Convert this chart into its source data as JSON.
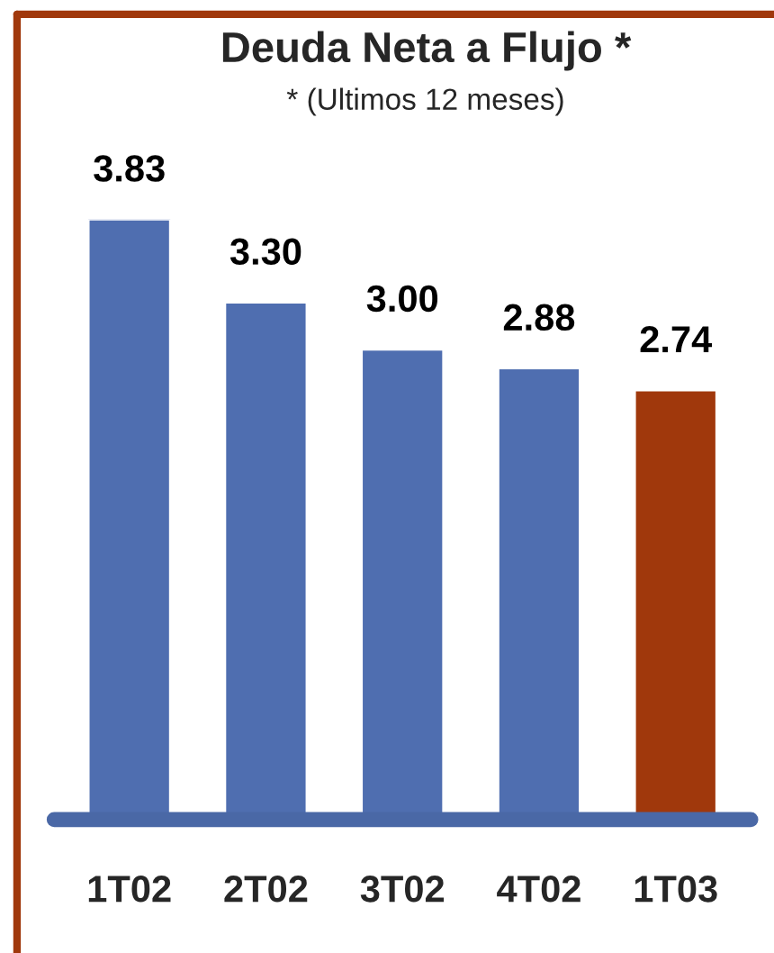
{
  "chart_data": {
    "type": "bar",
    "title": "Deuda Neta a Flujo *",
    "subtitle": "* (Ultimos 12 meses)",
    "categories": [
      "1T02",
      "2T02",
      "3T02",
      "4T02",
      "1T03"
    ],
    "values": [
      3.83,
      3.3,
      3.0,
      2.88,
      2.74
    ],
    "value_labels": [
      "3.83",
      "3.30",
      "3.00",
      "2.88",
      "2.74"
    ],
    "colors": [
      "#4f6eb0",
      "#4f6eb0",
      "#4f6eb0",
      "#4f6eb0",
      "#a0380c"
    ],
    "grid": false
  }
}
